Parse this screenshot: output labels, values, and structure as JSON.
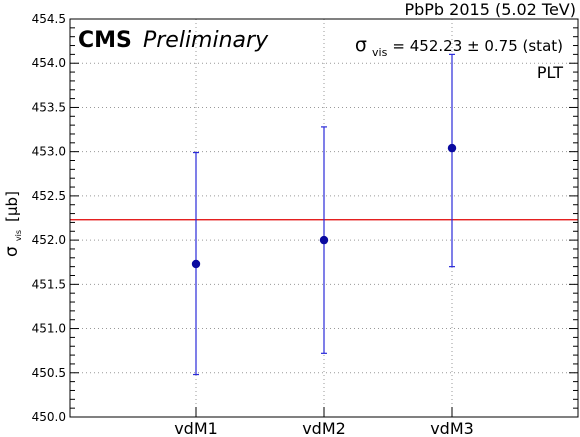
{
  "chart_data": {
    "type": "scatter",
    "header": "PbPb 2015 (5.02 TeV)",
    "experiment": "CMS",
    "status": "Preliminary",
    "ylabel_symbol": "σ",
    "ylabel_subscript": "vis",
    "ylabel_unit": "[μb]",
    "result_symbol": "σ",
    "result_subscript": "vis",
    "result_text": "= 452.23 ± 0.75 (stat)",
    "detector": "PLT",
    "categories": [
      "vdM1",
      "vdM2",
      "vdM3"
    ],
    "values": [
      451.73,
      452.0,
      453.04
    ],
    "errors_low": [
      1.25,
      1.28,
      1.34
    ],
    "errors_high": [
      1.26,
      1.28,
      1.06
    ],
    "reference_line": 452.23,
    "ylim": [
      450.0,
      454.5
    ],
    "yticks": [
      "450.0",
      "450.5",
      "451.0",
      "451.5",
      "452.0",
      "452.5",
      "453.0",
      "453.5",
      "454.0",
      "454.5"
    ],
    "grid": true,
    "colors": {
      "points": "#0a0aa0",
      "errorbars": "#2a2ad8",
      "reference": "#e00000",
      "grid": "#999999"
    }
  }
}
